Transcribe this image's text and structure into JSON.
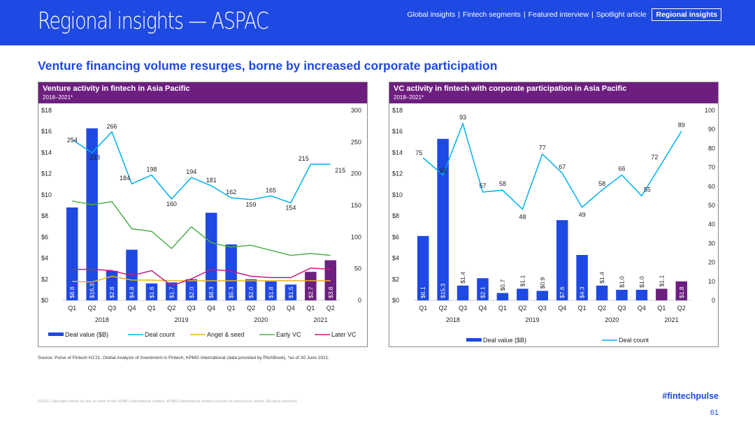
{
  "header": {
    "title": "Regional insights — ASPAC",
    "nav": [
      "Global insights",
      "Fintech segments",
      "Featured interview",
      "Spotlight article",
      "Regional insights"
    ],
    "nav_separator": "|",
    "active_nav": "Regional insights"
  },
  "headline": "Venture financing volume resurges, borne by increased corporate participation",
  "footer": {
    "source": "Source: Pulse of Fintech H1'21, Global Analysis of Investment in Fintech, KPMG International (data provided by PitchBook), *as of 30 June 2021.",
    "copyright": "©2021 Copyright owned by one or more of the KPMG International entities. KPMG International entities provide no services to clients. All rights reserved.",
    "hashtag": "#fintechpulse",
    "page_number": "61"
  },
  "colors": {
    "brand_blue": "#1e49e2",
    "bar_blue": "#1e49e2",
    "bar_purple": "#6d1f80",
    "deal_count_line": "#00b0f0",
    "angel_seed_line": "#f2b11b",
    "early_vc_line": "#4eb24a",
    "later_vc_line": "#c7197d"
  },
  "chart_data": [
    {
      "type": "bar",
      "title": "Venture activity in fintech in Asia Pacific",
      "subtitle": "2018–2021*",
      "categories": [
        "Q1",
        "Q2",
        "Q3",
        "Q4",
        "Q1",
        "Q2",
        "Q3",
        "Q4",
        "Q1",
        "Q2",
        "Q3",
        "Q4",
        "Q1",
        "Q2"
      ],
      "years": [
        "2018",
        "2019",
        "2020",
        "2021"
      ],
      "y_left_ticks": [
        "$0",
        "$2",
        "$4",
        "$6",
        "$8",
        "$10",
        "$12",
        "$14",
        "$16",
        "$18"
      ],
      "y_right_ticks": [
        "0",
        "50",
        "100",
        "150",
        "200",
        "250",
        "300"
      ],
      "ylim_left": [
        0,
        18
      ],
      "ylim_right": [
        0,
        300
      ],
      "series": [
        {
          "name": "Deal value ($B)",
          "axis": "left",
          "kind": "bar",
          "values": [
            8.8,
            16.3,
            2.8,
            4.8,
            1.6,
            1.7,
            2.0,
            8.3,
            5.3,
            2.0,
            1.8,
            1.5,
            2.7,
            3.8
          ],
          "labels": [
            "$8.8",
            "$16.3",
            "$2.8",
            "$4.8",
            "$1.6",
            "$1.7",
            "$2.0",
            "$8.3",
            "$5.3",
            "$2.0",
            "$1.8",
            "$1.5",
            "$2.7",
            "$3.8"
          ]
        },
        {
          "name": "Deal count",
          "axis": "right",
          "kind": "line",
          "values": [
            254,
            233,
            266,
            184,
            198,
            160,
            194,
            181,
            162,
            159,
            165,
            154,
            215,
            215
          ],
          "labels": [
            "254",
            "233",
            "266",
            "184",
            "198",
            "160",
            "194",
            "181",
            "162",
            "159",
            "165",
            "154",
            "215",
            "215"
          ]
        },
        {
          "name": "Angel & seed",
          "axis": "right",
          "kind": "line",
          "values": [
            30,
            29,
            38,
            32,
            32,
            31,
            31,
            31,
            31,
            31,
            31,
            31,
            31,
            31
          ]
        },
        {
          "name": "Early VC",
          "axis": "right",
          "kind": "line",
          "values": [
            157,
            151,
            156,
            113,
            109,
            82,
            116,
            91,
            84,
            87,
            79,
            71,
            74,
            71
          ]
        },
        {
          "name": "Later VC",
          "axis": "right",
          "kind": "line",
          "values": [
            49,
            49,
            47,
            39,
            47,
            23,
            34,
            49,
            46,
            38,
            36,
            36,
            51,
            49
          ]
        }
      ],
      "legend": [
        "Deal value ($B)",
        "Deal count",
        "Angel & seed",
        "Early VC",
        "Later VC"
      ]
    },
    {
      "type": "bar",
      "title": "VC activity in fintech with corporate participation in Asia Pacific",
      "subtitle": "2018–2021*",
      "categories": [
        "Q1",
        "Q2",
        "Q3",
        "Q4",
        "Q1",
        "Q2",
        "Q3",
        "Q4",
        "Q1",
        "Q2",
        "Q3",
        "Q4",
        "Q1",
        "Q2"
      ],
      "years": [
        "2018",
        "2019",
        "2020",
        "2021"
      ],
      "y_left_ticks": [
        "$0",
        "$2",
        "$4",
        "$6",
        "$8",
        "$10",
        "$12",
        "$14",
        "$16",
        "$18"
      ],
      "y_right_ticks": [
        "0",
        "10",
        "20",
        "30",
        "40",
        "50",
        "60",
        "70",
        "80",
        "90",
        "100"
      ],
      "ylim_left": [
        0,
        18
      ],
      "ylim_right": [
        0,
        100
      ],
      "series": [
        {
          "name": "Deal value ($B)",
          "axis": "left",
          "kind": "bar",
          "values": [
            6.1,
            15.3,
            1.4,
            2.1,
            0.7,
            1.1,
            0.9,
            7.6,
            4.3,
            1.4,
            1.0,
            1.0,
            1.1,
            1.8
          ],
          "labels": [
            "$6.1",
            "$15.3",
            "$1.4",
            "$2.1",
            "$0.7",
            "$1.1",
            "$0.9",
            "$7.6",
            "$4.3",
            "$1.4",
            "$1.0",
            "$1.0",
            "$1.1",
            "$1.8"
          ]
        },
        {
          "name": "Deal count",
          "axis": "right",
          "kind": "line",
          "values": [
            75,
            66,
            93,
            57,
            58,
            48,
            77,
            67,
            49,
            58,
            66,
            55,
            72,
            89
          ],
          "labels": [
            "75",
            "66",
            "93",
            "57",
            "58",
            "48",
            "77",
            "67",
            "49",
            "58",
            "66",
            "55",
            "72",
            "89"
          ]
        }
      ],
      "legend": [
        "Deal value ($B)",
        "Deal count"
      ]
    }
  ]
}
